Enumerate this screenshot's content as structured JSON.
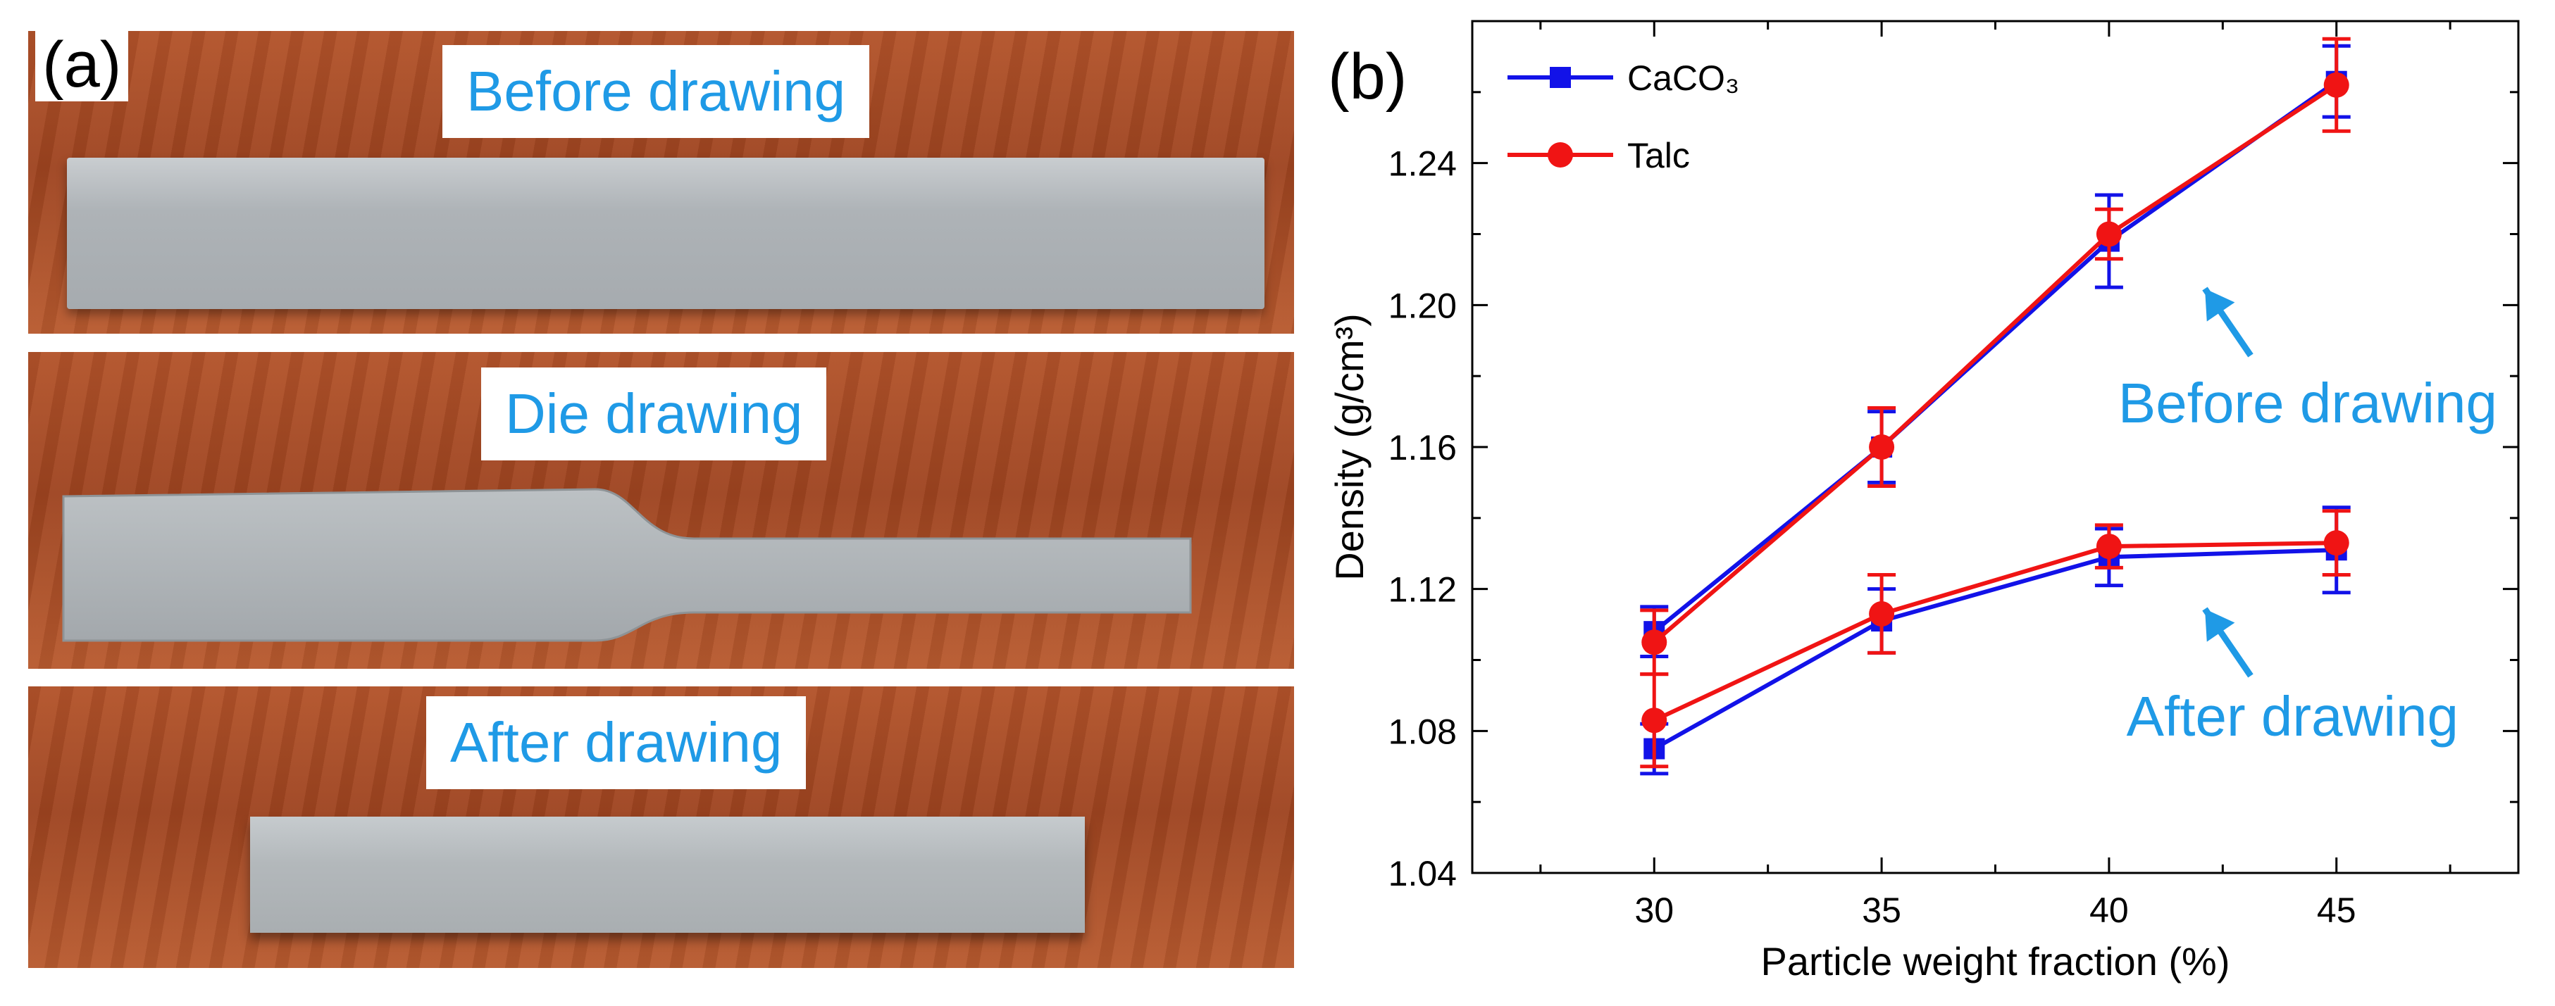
{
  "panel_a": {
    "letter": "(a)",
    "labels": [
      "Before drawing",
      "Die drawing",
      "After drawing"
    ]
  },
  "panel_b": {
    "letter": "(b)"
  },
  "colors": {
    "caco3": "#1212e8",
    "talc": "#f01414",
    "annotation": "#1f9ae6"
  },
  "chart_data": {
    "type": "line",
    "xlabel": "Particle weight fraction (%)",
    "ylabel": "Density (g/cm³)",
    "x": [
      30,
      35,
      40,
      45
    ],
    "xlim": [
      26.0,
      49.0
    ],
    "ylim": [
      1.04,
      1.28
    ],
    "xticks": [
      "30",
      "35",
      "40",
      "45"
    ],
    "yticks": [
      "1.04",
      "1.08",
      "1.12",
      "1.16",
      "1.20",
      "1.24"
    ],
    "legend": [
      {
        "label": "CaCO₃",
        "marker": "square",
        "color": "#1212e8"
      },
      {
        "label": "Talc",
        "marker": "circle",
        "color": "#f01414"
      }
    ],
    "series": [
      {
        "name": "CaCO₃ before drawing",
        "material": "CaCO3",
        "marker": "square",
        "color": "#1212e8",
        "values": [
          1.108,
          1.16,
          1.218,
          1.263
        ],
        "err": [
          0.007,
          0.01,
          0.013,
          0.01
        ]
      },
      {
        "name": "Talc before drawing",
        "material": "Talc",
        "marker": "circle",
        "color": "#f01414",
        "values": [
          1.105,
          1.16,
          1.22,
          1.262
        ],
        "err": [
          0.009,
          0.011,
          0.007,
          0.013
        ]
      },
      {
        "name": "CaCO₃ after drawing",
        "material": "CaCO3",
        "marker": "square",
        "color": "#1212e8",
        "values": [
          1.075,
          1.111,
          1.129,
          1.131
        ],
        "err": [
          0.007,
          0.009,
          0.008,
          0.012
        ]
      },
      {
        "name": "Talc after drawing",
        "material": "Talc",
        "marker": "circle",
        "color": "#f01414",
        "values": [
          1.083,
          1.113,
          1.132,
          1.133
        ],
        "err": [
          0.013,
          0.011,
          0.006,
          0.009
        ]
      }
    ],
    "annotations": [
      "Before drawing",
      "After drawing"
    ]
  }
}
